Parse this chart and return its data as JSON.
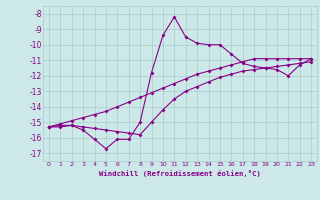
{
  "xlabel": "Windchill (Refroidissement éolien,°C)",
  "x_values": [
    0,
    1,
    2,
    3,
    4,
    5,
    6,
    7,
    8,
    9,
    10,
    11,
    12,
    13,
    14,
    15,
    16,
    17,
    18,
    19,
    20,
    21,
    22,
    23
  ],
  "line1_y": [
    -15.3,
    -15.3,
    -15.2,
    -15.5,
    -16.1,
    -16.7,
    -16.1,
    -16.1,
    -15.0,
    -11.8,
    -9.4,
    -8.2,
    -9.5,
    -9.9,
    -10.0,
    -10.0,
    -10.6,
    -11.2,
    -11.4,
    -11.5,
    -11.6,
    -12.0,
    -11.3,
    -10.9
  ],
  "line2_y": [
    -15.3,
    -15.2,
    -15.2,
    -15.3,
    -15.4,
    -15.5,
    -15.6,
    -15.7,
    -15.8,
    -15.0,
    -14.2,
    -13.5,
    -13.0,
    -12.7,
    -12.4,
    -12.1,
    -11.9,
    -11.7,
    -11.6,
    -11.5,
    -11.4,
    -11.3,
    -11.2,
    -11.1
  ],
  "line3_y": [
    -15.3,
    -15.1,
    -14.9,
    -14.7,
    -14.5,
    -14.3,
    -14.0,
    -13.7,
    -13.4,
    -13.1,
    -12.8,
    -12.5,
    -12.2,
    -11.9,
    -11.7,
    -11.5,
    -11.3,
    -11.1,
    -10.9,
    -10.9,
    -10.9,
    -10.9,
    -10.9,
    -10.9
  ],
  "line_color": "#880088",
  "bg_color": "#cce8e8",
  "grid_color": "#aacccc",
  "ylim": [
    -17.5,
    -7.5
  ],
  "xlim": [
    -0.5,
    23.5
  ],
  "yticks": [
    -17,
    -16,
    -15,
    -14,
    -13,
    -12,
    -11,
    -10,
    -9,
    -8
  ],
  "xticks": [
    0,
    1,
    2,
    3,
    4,
    5,
    6,
    7,
    8,
    9,
    10,
    11,
    12,
    13,
    14,
    15,
    16,
    17,
    18,
    19,
    20,
    21,
    22,
    23
  ]
}
